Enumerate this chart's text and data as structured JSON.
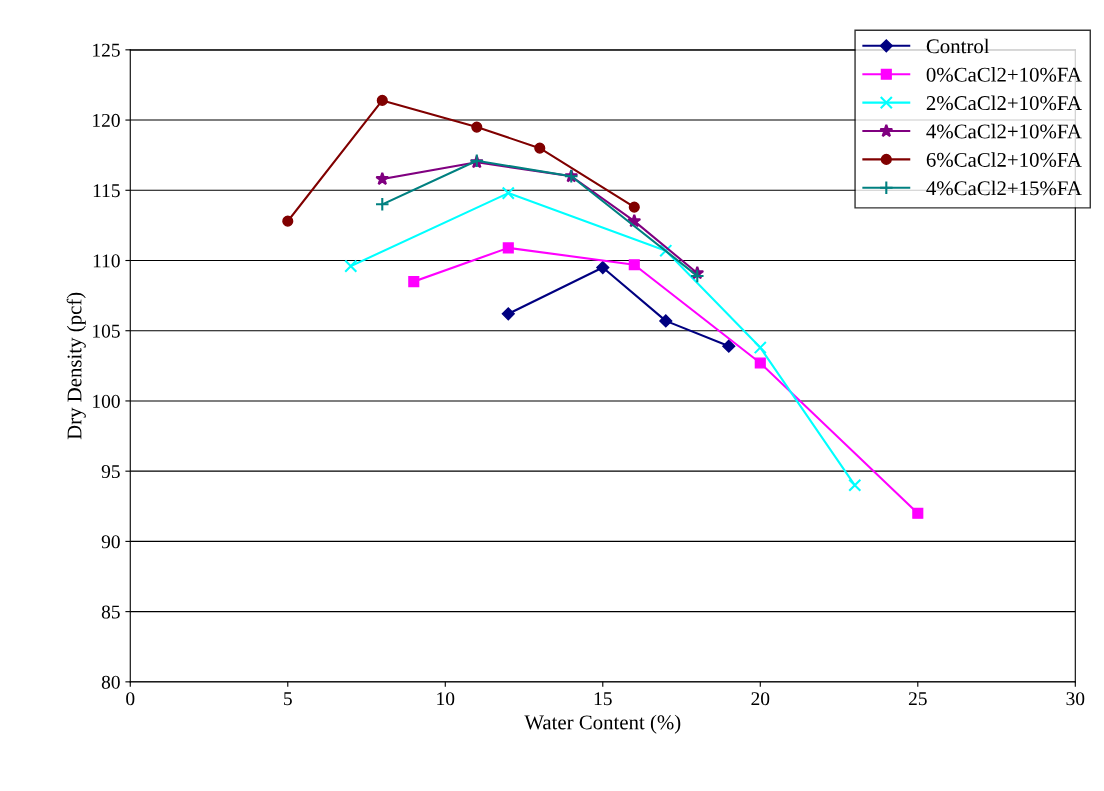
{
  "chart_data": {
    "type": "line",
    "xlabel": "Water Content (%)",
    "ylabel": "Dry Density (pcf)",
    "xlim": [
      0,
      30
    ],
    "xticks": [
      0,
      5,
      10,
      15,
      20,
      25,
      30
    ],
    "ylim": [
      80,
      125
    ],
    "yticks": [
      80,
      85,
      90,
      95,
      100,
      105,
      110,
      115,
      120,
      125
    ],
    "grid": "y",
    "legend": "top right",
    "series": [
      {
        "name": "Control",
        "color": "#000080",
        "marker": "diamond",
        "x": [
          12,
          15,
          17,
          19
        ],
        "values": [
          106.2,
          109.5,
          105.7,
          103.9
        ]
      },
      {
        "name": "0%CaCl2+10%FA",
        "color": "#ff00ff",
        "marker": "square",
        "x": [
          9,
          12,
          16,
          20,
          25
        ],
        "values": [
          108.5,
          110.9,
          109.7,
          102.7,
          92.0
        ]
      },
      {
        "name": "2%CaCl2+10%FA",
        "color": "#00ffff",
        "marker": "cross",
        "x": [
          7,
          12,
          17,
          20,
          23
        ],
        "values": [
          109.6,
          114.8,
          110.7,
          103.8,
          94.0
        ]
      },
      {
        "name": "4%CaCl2+10%FA",
        "color": "#800080",
        "marker": "star",
        "x": [
          8,
          11,
          14,
          16,
          18
        ],
        "values": [
          115.8,
          117.0,
          116.0,
          112.8,
          109.1
        ]
      },
      {
        "name": "6%CaCl2+10%FA",
        "color": "#800000",
        "marker": "circle",
        "x": [
          5,
          8,
          11,
          13,
          16
        ],
        "values": [
          112.8,
          121.4,
          119.5,
          118.0,
          113.8
        ]
      },
      {
        "name": "4%CaCl2+15%FA",
        "color": "#008080",
        "marker": "plus",
        "x": [
          8,
          11,
          14,
          18
        ],
        "values": [
          114.0,
          117.1,
          116.0,
          108.9
        ]
      }
    ]
  }
}
